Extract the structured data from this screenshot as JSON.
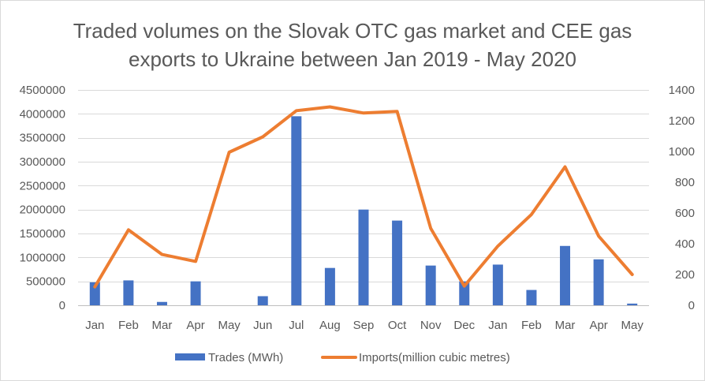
{
  "chart_data": {
    "type": "bar",
    "title_lines": [
      "Traded volumes on the Slovak OTC gas market and CEE gas",
      "exports to Ukraine between Jan 2019 - May 2020"
    ],
    "categories": [
      "Jan",
      "Feb",
      "Mar",
      "Apr",
      "May",
      "Jun",
      "Jul",
      "Aug",
      "Sep",
      "Oct",
      "Nov",
      "Dec",
      "Jan",
      "Feb",
      "Mar",
      "Apr",
      "May"
    ],
    "series": [
      {
        "name": "Trades (MWh)",
        "type": "bar",
        "axis": "left",
        "color": "#4472c4",
        "values": [
          480000,
          520000,
          70000,
          500000,
          0,
          190000,
          3950000,
          780000,
          2000000,
          1770000,
          830000,
          500000,
          850000,
          320000,
          1240000,
          960000,
          35000
        ]
      },
      {
        "name": "Imports(million cubic metres)",
        "type": "line",
        "axis": "right",
        "color": "#ed7d31",
        "values": [
          120,
          490,
          330,
          285,
          995,
          1095,
          1265,
          1290,
          1250,
          1260,
          500,
          125,
          385,
          590,
          900,
          450,
          200
        ]
      }
    ],
    "y_left": {
      "min": 0,
      "max": 4500000,
      "ticks": [
        "0",
        "500000",
        "1000000",
        "1500000",
        "2000000",
        "2500000",
        "3000000",
        "3500000",
        "4000000",
        "4500000"
      ]
    },
    "y_right": {
      "min": 0,
      "max": 1400,
      "ticks": [
        "0",
        "200",
        "400",
        "600",
        "800",
        "1000",
        "1200",
        "1400"
      ]
    },
    "grid": true,
    "legend_position": "bottom"
  }
}
